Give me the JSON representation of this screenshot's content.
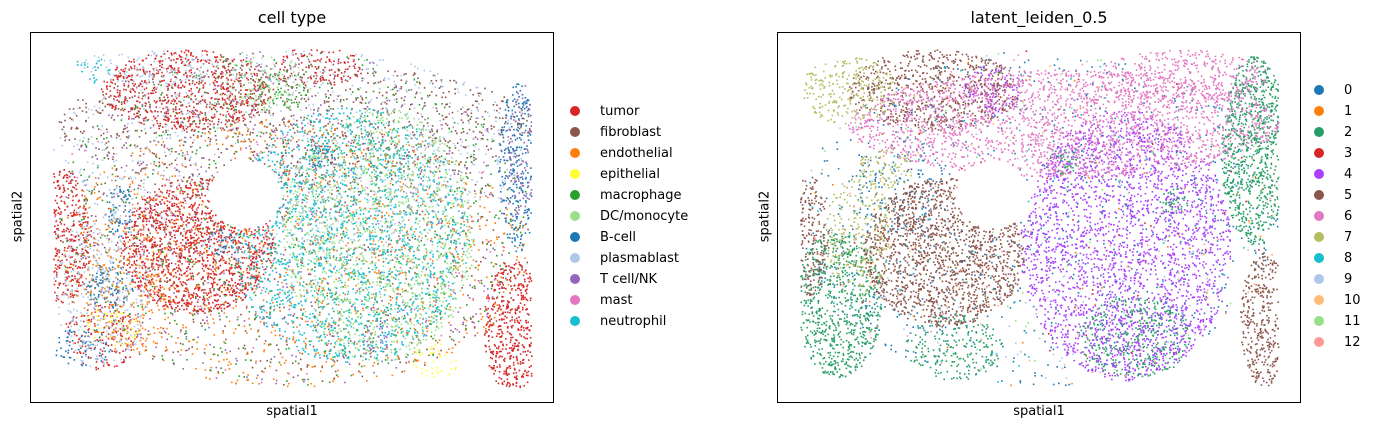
{
  "chart_data": [
    {
      "type": "scatter",
      "title": "cell type",
      "xlabel": "spatial1",
      "ylabel": "spatial2",
      "grid": false,
      "ticks": false,
      "legend_position": "right",
      "categories": [
        {
          "name": "tumor",
          "color": "#d62728",
          "regions": [
            {
              "cx": 0.3,
              "cy": 0.58,
              "rx": 0.16,
              "ry": 0.2,
              "d": 0.85
            },
            {
              "cx": 0.02,
              "cy": 0.55,
              "rx": 0.06,
              "ry": 0.2,
              "d": 0.7
            },
            {
              "cx": 0.28,
              "cy": 0.12,
              "rx": 0.18,
              "ry": 0.12,
              "d": 0.6
            },
            {
              "cx": 0.96,
              "cy": 0.82,
              "rx": 0.06,
              "ry": 0.2,
              "d": 0.75
            },
            {
              "cx": 0.55,
              "cy": 0.05,
              "rx": 0.1,
              "ry": 0.06,
              "d": 0.4
            },
            {
              "cx": 0.1,
              "cy": 0.85,
              "rx": 0.08,
              "ry": 0.1,
              "d": 0.35
            }
          ]
        },
        {
          "name": "fibroblast",
          "color": "#8c564b",
          "regions": [
            {
              "cx": 0.5,
              "cy": 0.22,
              "rx": 0.5,
              "ry": 0.18,
              "d": 0.18
            },
            {
              "cx": 0.5,
              "cy": 0.6,
              "rx": 0.5,
              "ry": 0.4,
              "d": 0.06
            }
          ]
        },
        {
          "name": "endothelial",
          "color": "#ff7f0e",
          "regions": [
            {
              "cx": 0.5,
              "cy": 0.6,
              "rx": 0.5,
              "ry": 0.4,
              "d": 0.1
            },
            {
              "cx": 0.16,
              "cy": 0.7,
              "rx": 0.1,
              "ry": 0.2,
              "d": 0.2
            }
          ]
        },
        {
          "name": "epithelial",
          "color": "#ffff33",
          "regions": [
            {
              "cx": 0.12,
              "cy": 0.82,
              "rx": 0.06,
              "ry": 0.06,
              "d": 0.25
            },
            {
              "cx": 0.8,
              "cy": 0.92,
              "rx": 0.05,
              "ry": 0.05,
              "d": 0.25
            }
          ]
        },
        {
          "name": "macrophage",
          "color": "#2ca02c",
          "regions": [
            {
              "cx": 0.5,
              "cy": 0.5,
              "rx": 0.5,
              "ry": 0.5,
              "d": 0.05
            },
            {
              "cx": 0.48,
              "cy": 0.12,
              "rx": 0.06,
              "ry": 0.06,
              "d": 0.25
            }
          ]
        },
        {
          "name": "DC/monocyte",
          "color": "#98df8a",
          "regions": [
            {
              "cx": 0.68,
              "cy": 0.55,
              "rx": 0.2,
              "ry": 0.38,
              "d": 0.35
            },
            {
              "cx": 0.44,
              "cy": 0.1,
              "rx": 0.1,
              "ry": 0.08,
              "d": 0.25
            }
          ]
        },
        {
          "name": "B-cell",
          "color": "#1f77b4",
          "regions": [
            {
              "cx": 0.97,
              "cy": 0.35,
              "rx": 0.04,
              "ry": 0.25,
              "d": 0.5
            },
            {
              "cx": 0.14,
              "cy": 0.48,
              "rx": 0.03,
              "ry": 0.08,
              "d": 0.5
            },
            {
              "cx": 0.12,
              "cy": 0.7,
              "rx": 0.05,
              "ry": 0.07,
              "d": 0.45
            },
            {
              "cx": 0.06,
              "cy": 0.88,
              "rx": 0.06,
              "ry": 0.06,
              "d": 0.35
            },
            {
              "cx": 0.56,
              "cy": 0.32,
              "rx": 0.03,
              "ry": 0.04,
              "d": 0.45
            },
            {
              "cx": 0.35,
              "cy": 0.57,
              "rx": 0.03,
              "ry": 0.04,
              "d": 0.45
            }
          ]
        },
        {
          "name": "plasmablast",
          "color": "#aec7e8",
          "regions": [
            {
              "cx": 0.5,
              "cy": 0.3,
              "rx": 0.5,
              "ry": 0.3,
              "d": 0.1
            },
            {
              "cx": 0.1,
              "cy": 0.7,
              "rx": 0.1,
              "ry": 0.25,
              "d": 0.25
            },
            {
              "cx": 0.2,
              "cy": 0.05,
              "rx": 0.15,
              "ry": 0.05,
              "d": 0.25
            }
          ]
        },
        {
          "name": "T cell/NK",
          "color": "#9467bd",
          "regions": [
            {
              "cx": 0.5,
              "cy": 0.5,
              "rx": 0.5,
              "ry": 0.5,
              "d": 0.04
            },
            {
              "cx": 0.98,
              "cy": 0.3,
              "rx": 0.03,
              "ry": 0.2,
              "d": 0.3
            },
            {
              "cx": 0.68,
              "cy": 0.85,
              "rx": 0.03,
              "ry": 0.06,
              "d": 0.3
            }
          ]
        },
        {
          "name": "mast",
          "color": "#e377c2",
          "regions": [
            {
              "cx": 0.5,
              "cy": 0.5,
              "rx": 0.5,
              "ry": 0.5,
              "d": 0.01
            }
          ]
        },
        {
          "name": "neutrophil",
          "color": "#17becf",
          "regions": [
            {
              "cx": 0.62,
              "cy": 0.55,
              "rx": 0.25,
              "ry": 0.38,
              "d": 0.3
            },
            {
              "cx": 0.08,
              "cy": 0.06,
              "rx": 0.04,
              "ry": 0.04,
              "d": 0.25
            }
          ]
        }
      ]
    },
    {
      "type": "scatter",
      "title": "latent_leiden_0.5",
      "xlabel": "spatial1",
      "ylabel": "spatial2",
      "grid": false,
      "ticks": false,
      "legend_position": "right",
      "categories": [
        {
          "name": "0",
          "color": "#1f77b4",
          "regions": [
            {
              "cx": 0.5,
              "cy": 0.5,
              "rx": 0.5,
              "ry": 0.5,
              "d": 0.05
            },
            {
              "cx": 0.2,
              "cy": 0.4,
              "rx": 0.1,
              "ry": 0.15,
              "d": 0.15
            }
          ]
        },
        {
          "name": "1",
          "color": "#ff7f0e",
          "regions": [
            {
              "cx": 0.5,
              "cy": 0.5,
              "rx": 0.5,
              "ry": 0.5,
              "d": 0.004
            }
          ]
        },
        {
          "name": "2",
          "color": "#279e68",
          "regions": [
            {
              "cx": 0.95,
              "cy": 0.3,
              "rx": 0.07,
              "ry": 0.28,
              "d": 0.85
            },
            {
              "cx": 0.08,
              "cy": 0.75,
              "rx": 0.09,
              "ry": 0.22,
              "d": 0.7
            },
            {
              "cx": 0.7,
              "cy": 0.85,
              "rx": 0.12,
              "ry": 0.12,
              "d": 0.5
            },
            {
              "cx": 0.32,
              "cy": 0.88,
              "rx": 0.1,
              "ry": 0.1,
              "d": 0.4
            },
            {
              "cx": 0.55,
              "cy": 0.33,
              "rx": 0.03,
              "ry": 0.04,
              "d": 0.7
            },
            {
              "cx": 0.78,
              "cy": 0.45,
              "rx": 0.03,
              "ry": 0.04,
              "d": 0.7
            }
          ]
        },
        {
          "name": "3",
          "color": "#d62728",
          "regions": [
            {
              "cx": 0.5,
              "cy": 0.5,
              "rx": 0.5,
              "ry": 0.5,
              "d": 0.004
            }
          ]
        },
        {
          "name": "4",
          "color": "#aa40fc",
          "regions": [
            {
              "cx": 0.68,
              "cy": 0.58,
              "rx": 0.22,
              "ry": 0.4,
              "d": 0.85
            },
            {
              "cx": 0.4,
              "cy": 0.12,
              "rx": 0.06,
              "ry": 0.08,
              "d": 0.45
            }
          ]
        },
        {
          "name": "5",
          "color": "#8c564b",
          "regions": [
            {
              "cx": 0.3,
              "cy": 0.6,
              "rx": 0.17,
              "ry": 0.22,
              "d": 0.8
            },
            {
              "cx": 0.28,
              "cy": 0.12,
              "rx": 0.18,
              "ry": 0.12,
              "d": 0.55
            },
            {
              "cx": 0.97,
              "cy": 0.8,
              "rx": 0.05,
              "ry": 0.2,
              "d": 0.7
            },
            {
              "cx": 0.02,
              "cy": 0.55,
              "rx": 0.04,
              "ry": 0.18,
              "d": 0.6
            }
          ]
        },
        {
          "name": "6",
          "color": "#e377c2",
          "regions": [
            {
              "cx": 0.55,
              "cy": 0.22,
              "rx": 0.45,
              "ry": 0.16,
              "d": 0.55
            },
            {
              "cx": 0.8,
              "cy": 0.08,
              "rx": 0.18,
              "ry": 0.08,
              "d": 0.5
            }
          ]
        },
        {
          "name": "7",
          "color": "#b5bd61",
          "regions": [
            {
              "cx": 0.1,
              "cy": 0.12,
              "rx": 0.1,
              "ry": 0.1,
              "d": 0.45
            },
            {
              "cx": 0.12,
              "cy": 0.55,
              "rx": 0.07,
              "ry": 0.18,
              "d": 0.35
            },
            {
              "cx": 0.18,
              "cy": 0.35,
              "rx": 0.06,
              "ry": 0.06,
              "d": 0.4
            }
          ]
        },
        {
          "name": "8",
          "color": "#17becf",
          "regions": [
            {
              "cx": 0.5,
              "cy": 0.5,
              "rx": 0.5,
              "ry": 0.5,
              "d": 0.006
            }
          ]
        },
        {
          "name": "9",
          "color": "#aec7e8",
          "regions": [
            {
              "cx": 0.5,
              "cy": 0.5,
              "rx": 0.5,
              "ry": 0.5,
              "d": 0.008
            }
          ]
        },
        {
          "name": "10",
          "color": "#ffbb78",
          "regions": [
            {
              "cx": 0.5,
              "cy": 0.5,
              "rx": 0.5,
              "ry": 0.5,
              "d": 0.004
            }
          ]
        },
        {
          "name": "11",
          "color": "#98df8a",
          "regions": [
            {
              "cx": 0.5,
              "cy": 0.5,
              "rx": 0.5,
              "ry": 0.5,
              "d": 0.006
            }
          ]
        },
        {
          "name": "12",
          "color": "#ff9896",
          "regions": [
            {
              "cx": 0.5,
              "cy": 0.5,
              "rx": 0.5,
              "ry": 0.5,
              "d": 0.004
            }
          ]
        }
      ]
    }
  ]
}
